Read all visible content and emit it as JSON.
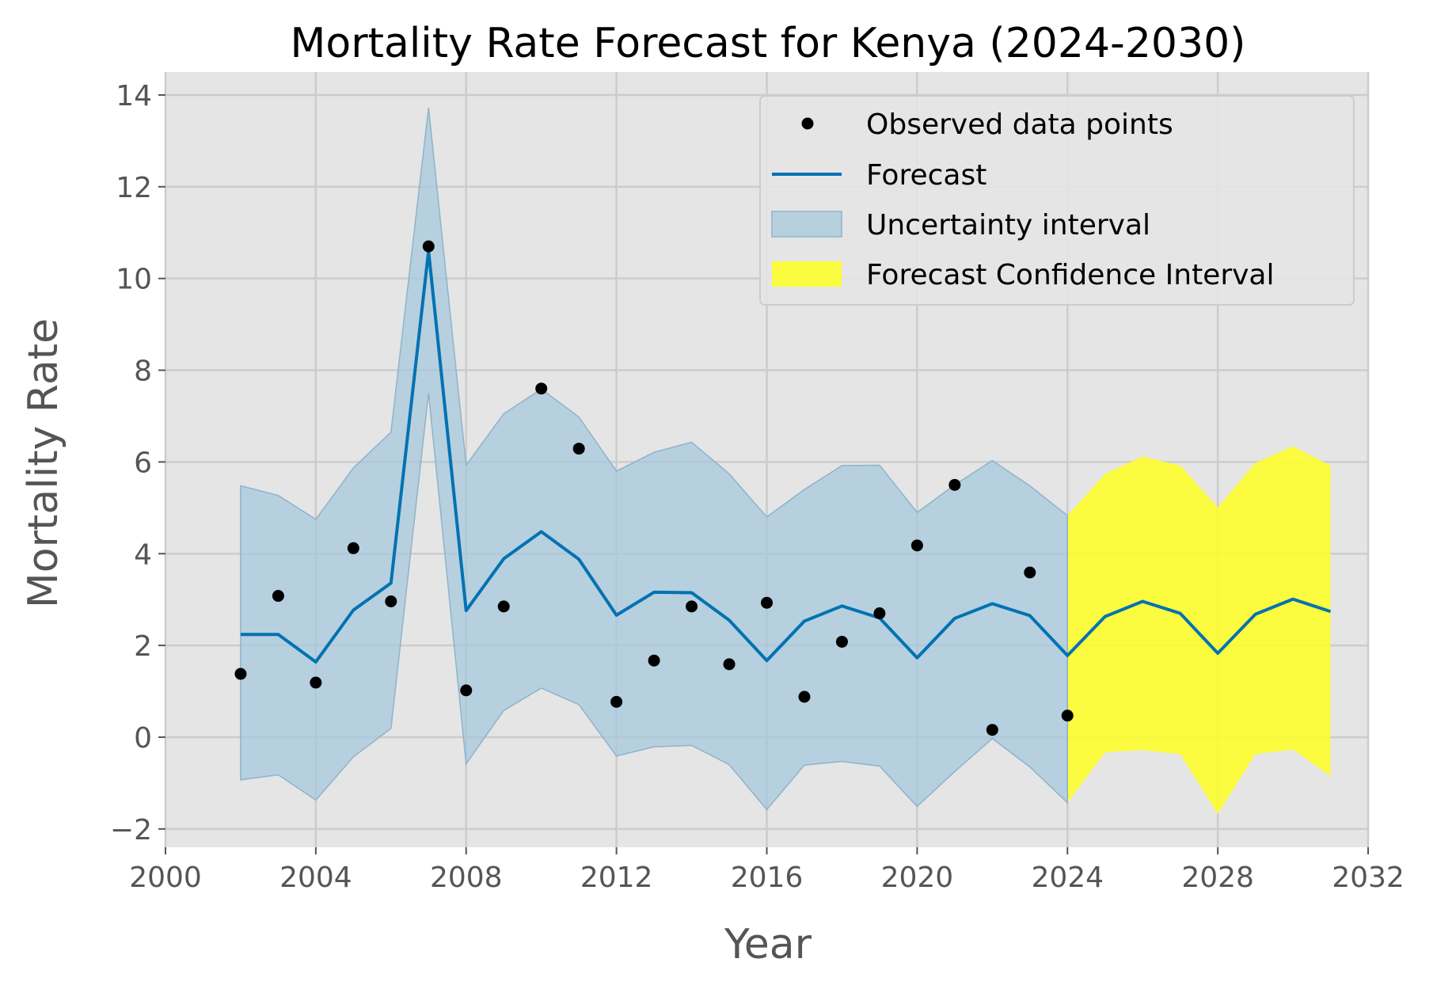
{
  "chart_data": {
    "type": "line",
    "title": "Mortality Rate Forecast for Kenya (2024-2030)",
    "xlabel": "Year",
    "ylabel": "Mortality Rate",
    "xlim": [
      2000,
      2032
    ],
    "ylim": [
      -2.4,
      14.5
    ],
    "xticks": [
      2000,
      2004,
      2008,
      2012,
      2016,
      2020,
      2024,
      2028,
      2032
    ],
    "xtick_labels": [
      "2000",
      "2004",
      "2008",
      "2012",
      "2016",
      "2020",
      "2024",
      "2028",
      "2032"
    ],
    "yticks": [
      -2,
      0,
      2,
      4,
      6,
      8,
      10,
      12,
      14
    ],
    "ytick_labels": [
      "−2",
      "0",
      "2",
      "4",
      "6",
      "8",
      "10",
      "12",
      "14"
    ],
    "grid": true,
    "legend_position": "top-right",
    "legend": [
      {
        "label": "Observed data points",
        "kind": "marker"
      },
      {
        "label": "Forecast",
        "kind": "line"
      },
      {
        "label": "Uncertainty interval",
        "kind": "band"
      },
      {
        "label": "Forecast Confidence Interval",
        "kind": "band-forecast"
      }
    ],
    "colors": {
      "observed": "#000000",
      "forecast": "#0072b2",
      "uncertainty": "#a5c8dc",
      "uncertainty_edge": "#8fb3ca",
      "forecast_ci": "#ffff22",
      "plot_bg": "#e5e5e5",
      "grid": "#cccccc"
    },
    "observed": {
      "x": [
        2002,
        2003,
        2004,
        2005,
        2006,
        2007,
        2008,
        2009,
        2010,
        2011,
        2012,
        2013,
        2014,
        2015,
        2016,
        2017,
        2018,
        2019,
        2020,
        2021,
        2022,
        2023,
        2024
      ],
      "y": [
        1.38,
        3.08,
        1.19,
        4.12,
        2.96,
        10.7,
        1.02,
        2.85,
        7.6,
        6.29,
        0.77,
        1.67,
        2.85,
        1.59,
        2.93,
        0.88,
        2.08,
        2.7,
        4.18,
        5.5,
        0.16,
        3.59,
        0.47
      ]
    },
    "forecast": {
      "x": [
        2002,
        2003,
        2004,
        2005,
        2006,
        2007,
        2008,
        2009,
        2010,
        2011,
        2012,
        2013,
        2014,
        2015,
        2016,
        2017,
        2018,
        2019,
        2020,
        2021,
        2022,
        2023,
        2024,
        2025,
        2026,
        2027,
        2028,
        2029,
        2030,
        2031
      ],
      "y": [
        2.24,
        2.24,
        1.64,
        2.77,
        3.36,
        10.6,
        2.76,
        3.89,
        4.48,
        3.88,
        2.66,
        3.16,
        3.15,
        2.55,
        1.67,
        2.53,
        2.86,
        2.6,
        1.73,
        2.59,
        2.91,
        2.65,
        1.78,
        2.63,
        2.96,
        2.7,
        1.83,
        2.68,
        3.01,
        2.74
      ]
    },
    "uncertainty_interval": {
      "x": [
        2002,
        2003,
        2004,
        2005,
        2006,
        2007,
        2008,
        2009,
        2010,
        2011,
        2012,
        2013,
        2014,
        2015,
        2016,
        2017,
        2018,
        2019,
        2020,
        2021,
        2022,
        2023,
        2024
      ],
      "lower": [
        -0.93,
        -0.82,
        -1.37,
        -0.43,
        0.19,
        7.5,
        -0.58,
        0.58,
        1.07,
        0.71,
        -0.41,
        -0.21,
        -0.18,
        -0.6,
        -1.58,
        -0.61,
        -0.53,
        -0.63,
        -1.51,
        -0.75,
        -0.03,
        -0.65,
        -1.43
      ],
      "upper": [
        5.48,
        5.27,
        4.75,
        5.87,
        6.65,
        13.72,
        5.93,
        7.05,
        7.59,
        6.98,
        5.8,
        6.21,
        6.43,
        5.74,
        4.8,
        5.4,
        5.92,
        5.93,
        4.9,
        5.5,
        6.03,
        5.48,
        4.83
      ]
    },
    "forecast_confidence_interval": {
      "x": [
        2024,
        2025,
        2026,
        2027,
        2028,
        2029,
        2030,
        2031
      ],
      "lower": [
        -1.43,
        -0.33,
        -0.28,
        -0.37,
        -1.67,
        -0.37,
        -0.27,
        -0.85
      ],
      "upper": [
        4.83,
        5.74,
        6.12,
        5.92,
        5.01,
        5.98,
        6.34,
        5.92
      ]
    }
  }
}
